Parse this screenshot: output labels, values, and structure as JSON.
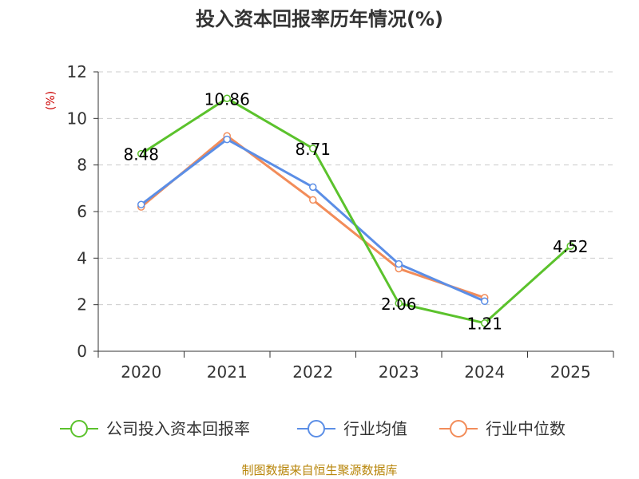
{
  "chart_data": {
    "type": "line",
    "title": "投入资本回报率历年情况(%)",
    "xlabel": "",
    "ylabel": "(%)",
    "categories": [
      "2020",
      "2021",
      "2022",
      "2023",
      "2024",
      "2025"
    ],
    "ylim": [
      0,
      12
    ],
    "yticks": [
      0,
      2,
      4,
      6,
      8,
      10,
      12
    ],
    "grid": true,
    "legend_position": "bottom",
    "series": [
      {
        "name": "公司投入资本回报率",
        "color": "#5bc22c",
        "values": [
          8.48,
          10.86,
          8.71,
          2.06,
          1.21,
          4.52
        ],
        "labels": [
          "8.48",
          "10.86",
          "8.71",
          "2.06",
          "1.21",
          "4.52"
        ]
      },
      {
        "name": "行业均值",
        "color": "#5b8ee6",
        "values": [
          6.3,
          9.1,
          7.05,
          3.75,
          2.15,
          null
        ]
      },
      {
        "name": "行业中位数",
        "color": "#f28c59",
        "values": [
          6.2,
          9.25,
          6.5,
          3.55,
          2.3,
          null
        ]
      }
    ]
  },
  "source": "制图数据来自恒生聚源数据库"
}
